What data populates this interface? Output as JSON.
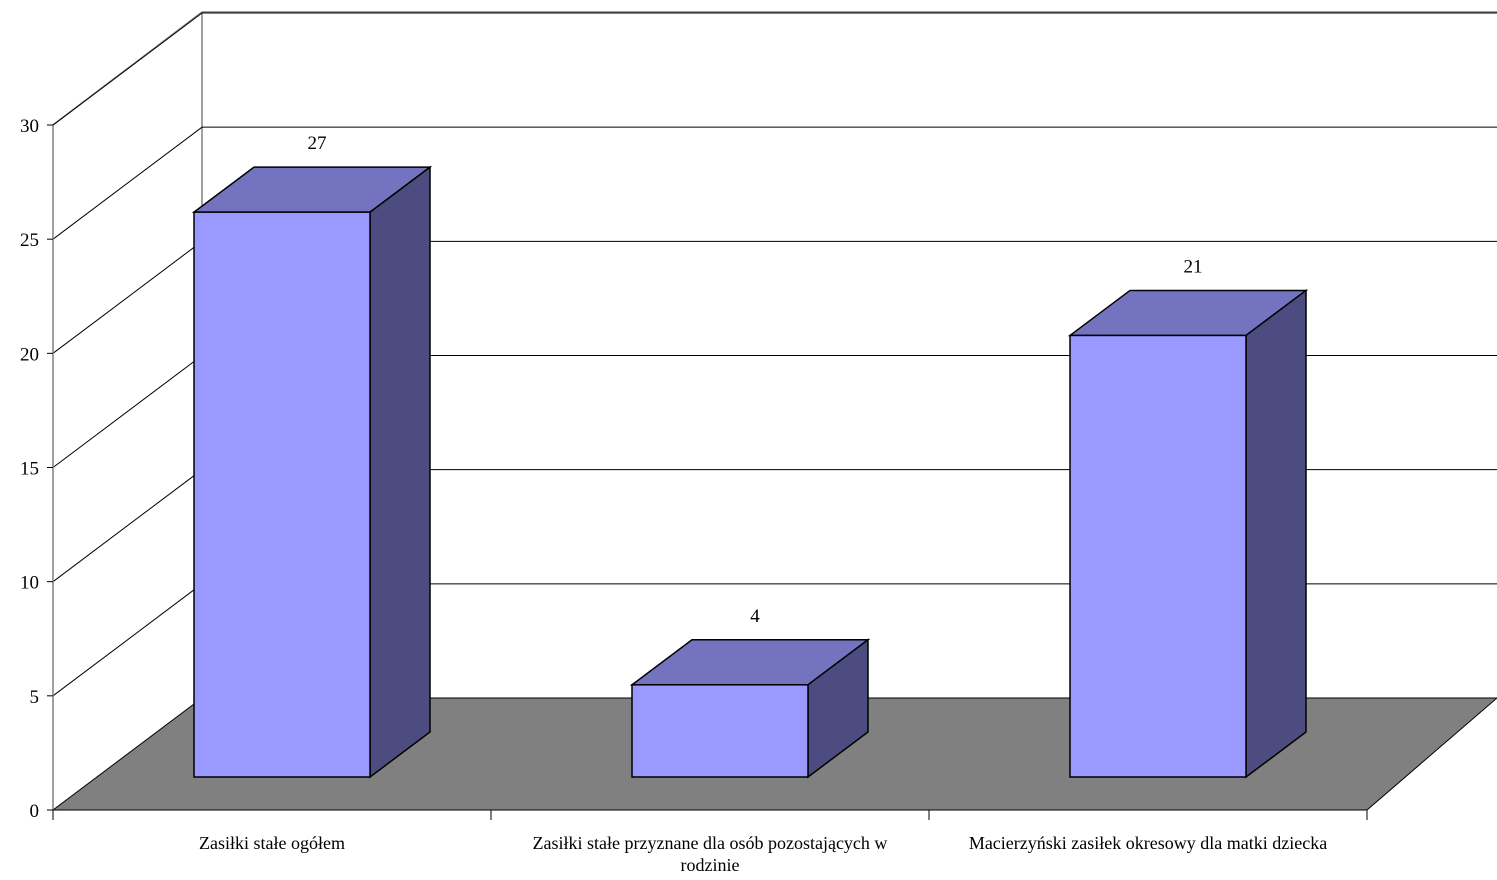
{
  "chart_data": {
    "type": "bar",
    "title": "",
    "xlabel": "",
    "ylabel": "",
    "ylim": [
      0,
      30
    ],
    "yticks": [
      0,
      5,
      10,
      15,
      20,
      25,
      30
    ],
    "grid": true,
    "three_d": true,
    "categories": [
      [
        "Zasiłki stałe ogółem"
      ],
      [
        "Zasiłki stałe przyznane dla osób pozostających w",
        "rodzinie"
      ],
      [
        "Macierzyński zasiłek okresowy dla matki dziecka"
      ]
    ],
    "values": [
      27,
      4,
      21
    ],
    "data_labels": [
      "27",
      "4",
      "21"
    ],
    "colors": {
      "bar_front": "#9999ff",
      "bar_top": "#7373bf",
      "bar_side": "#4c4c80",
      "floor": "#808080",
      "gridline": "#000000",
      "wall": "#ffffff"
    }
  }
}
